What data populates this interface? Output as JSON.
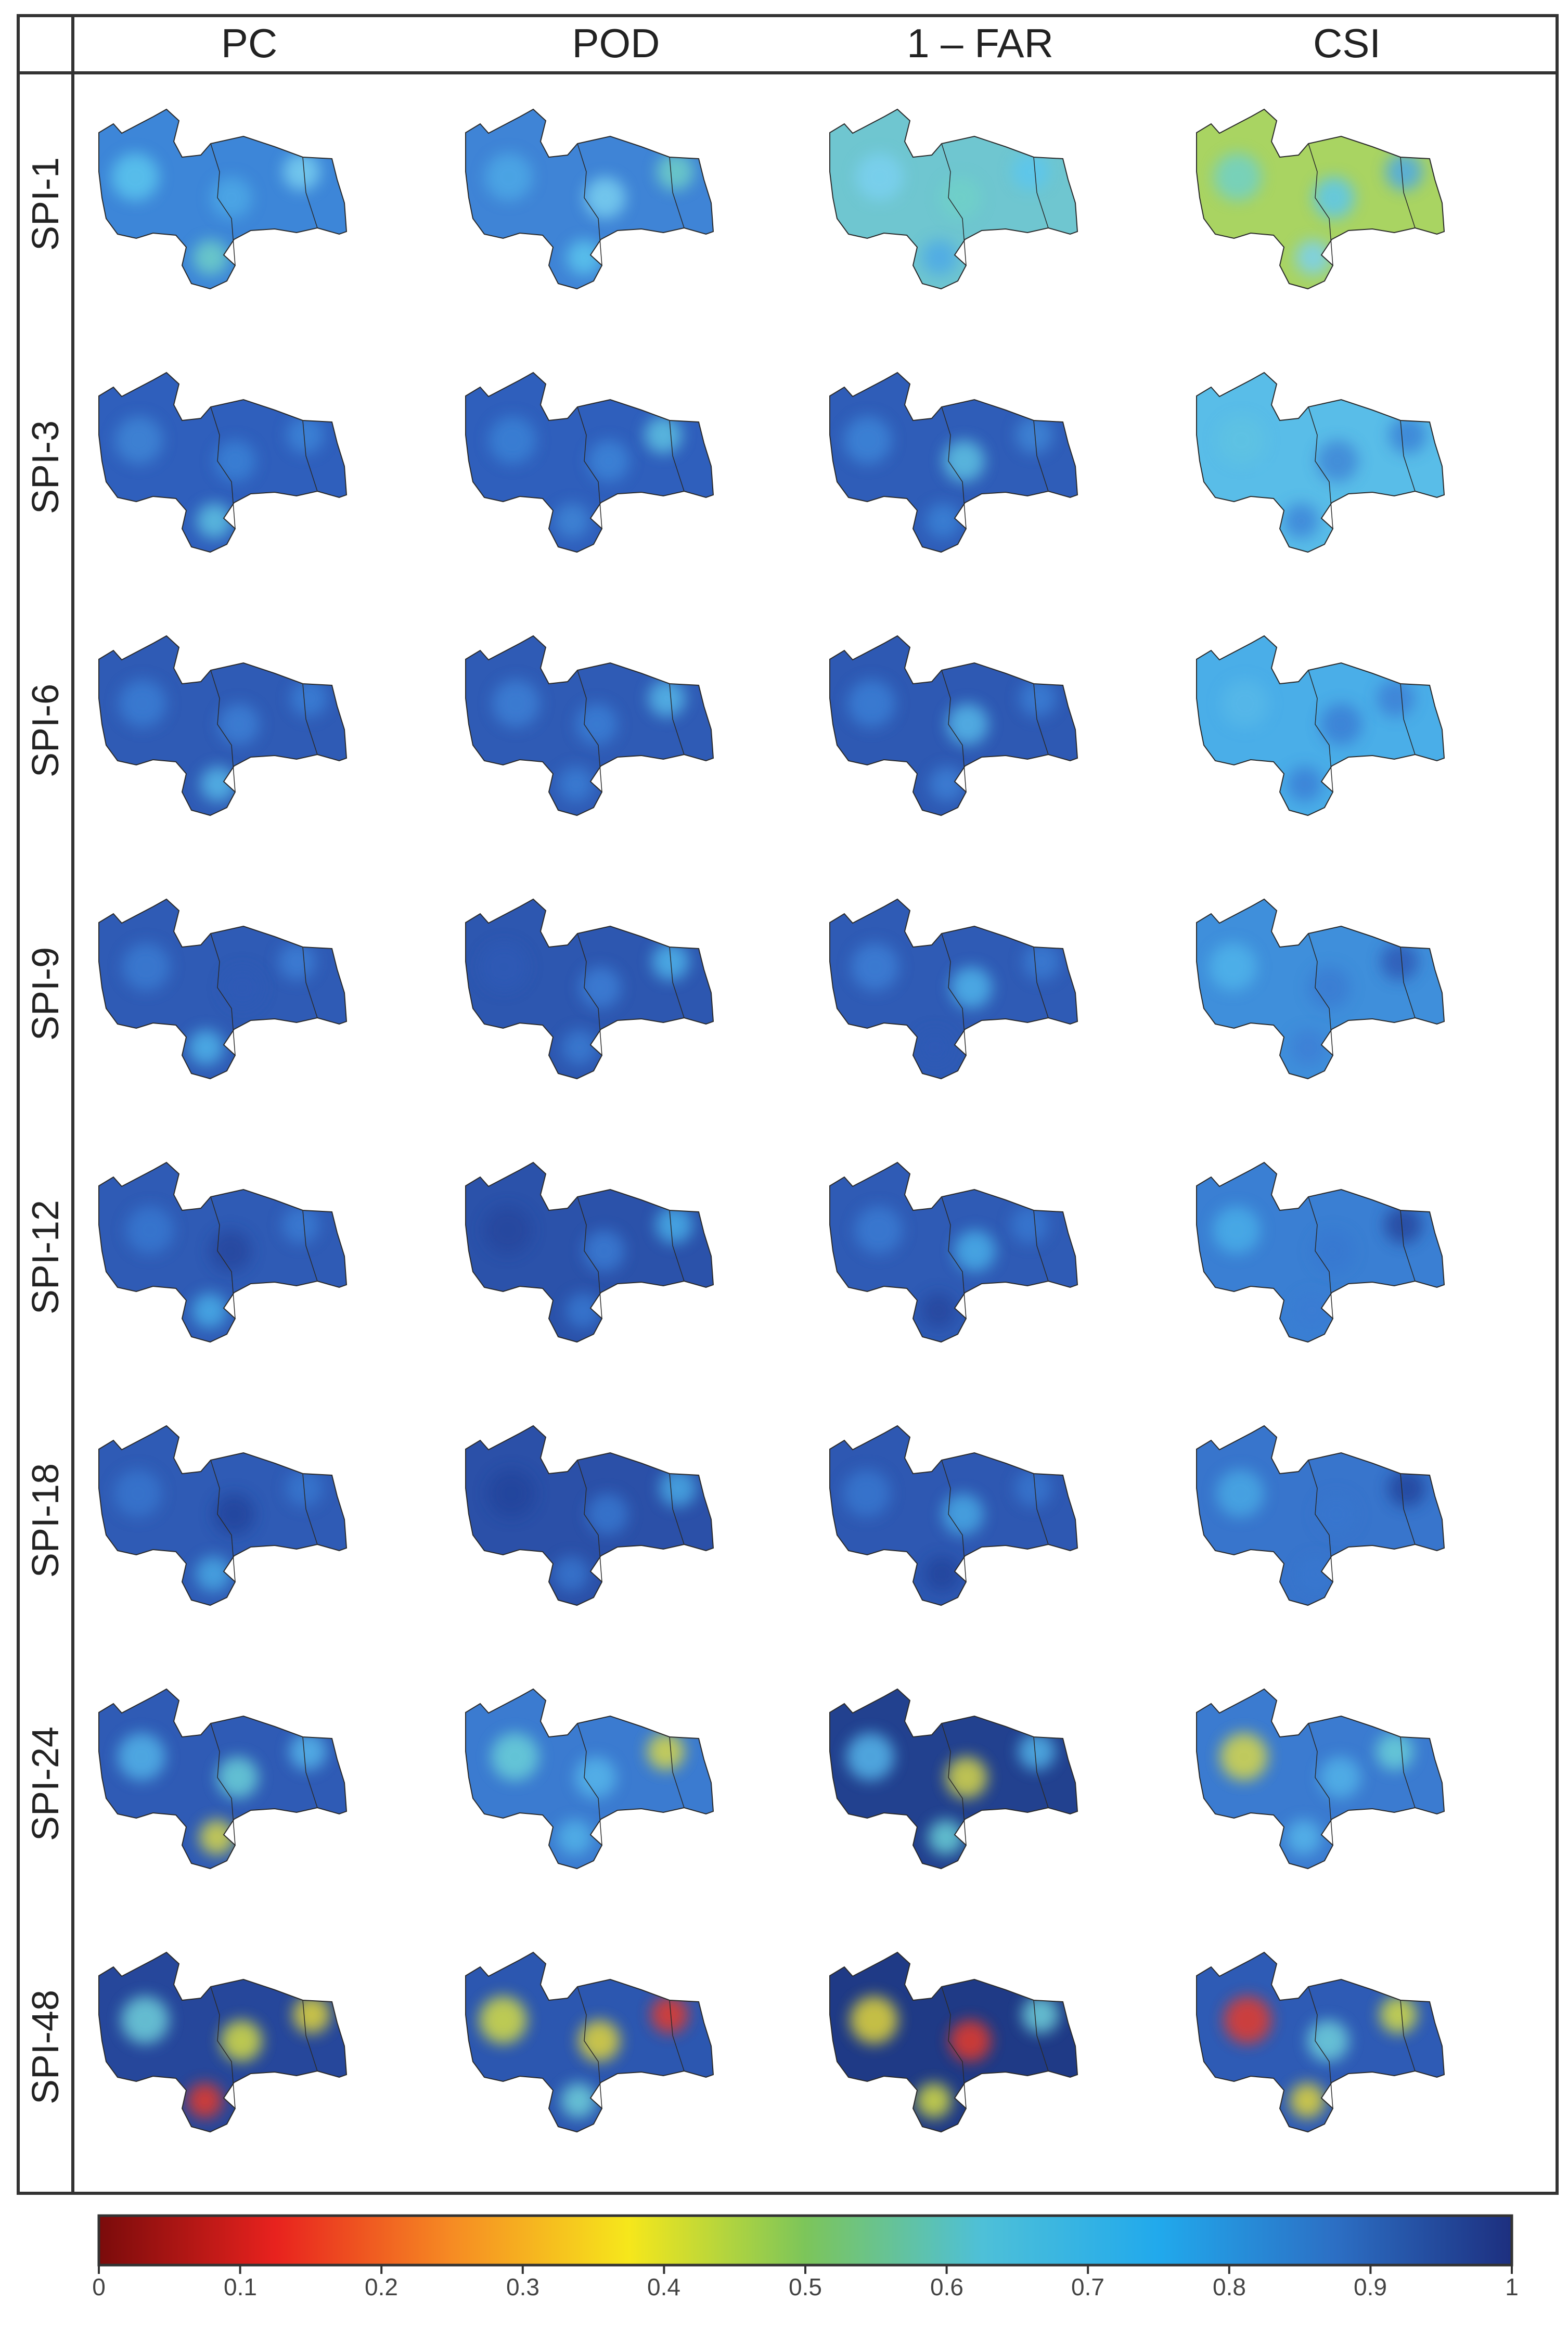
{
  "columns": [
    "PC",
    "POD",
    "1 – FAR",
    "CSI"
  ],
  "rows": [
    "SPI-1",
    "SPI-3",
    "SPI-6",
    "SPI-9",
    "SPI-12",
    "SPI-18",
    "SPI-24",
    "SPI-48"
  ],
  "colorbar": {
    "ticks": [
      "0",
      "0.1",
      "0.2",
      "0.3",
      "0.4",
      "0.5",
      "0.6",
      "0.7",
      "0.8",
      "0.9",
      "1"
    ],
    "min": 0,
    "max": 1,
    "colors": [
      "#7a0b0b",
      "#e8221e",
      "#f68b23",
      "#f6e71b",
      "#7cc55a",
      "#4ec0d8",
      "#21a9ec",
      "#2c6fc4",
      "#1d2f7f"
    ]
  },
  "map_base_color": "#2f5bb5"
}
